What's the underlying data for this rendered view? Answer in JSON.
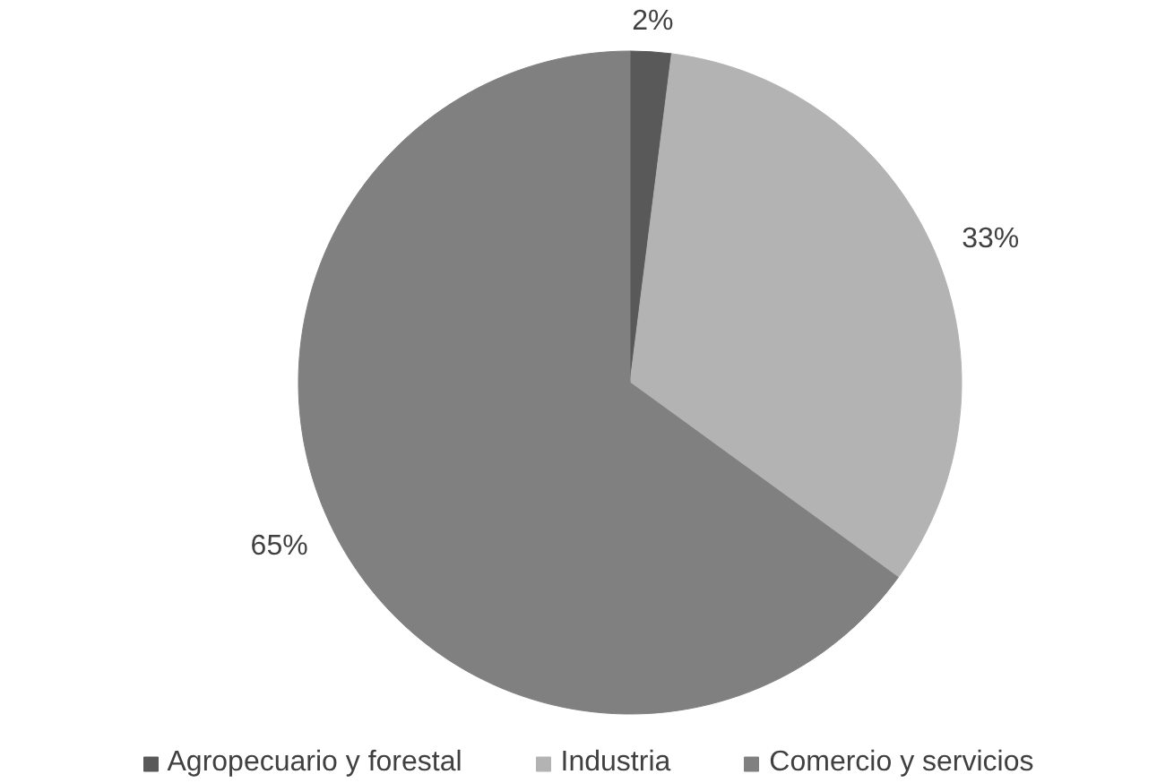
{
  "chart_data": {
    "type": "pie",
    "categories": [
      "Agropecuario y forestal",
      "Industria",
      "Comercio y servicios"
    ],
    "values": [
      2,
      33,
      65
    ],
    "colors": [
      "#595959",
      "#b3b3b3",
      "#808080"
    ],
    "value_labels": [
      "2%",
      "33%",
      "65%"
    ],
    "legend": "bottom"
  }
}
